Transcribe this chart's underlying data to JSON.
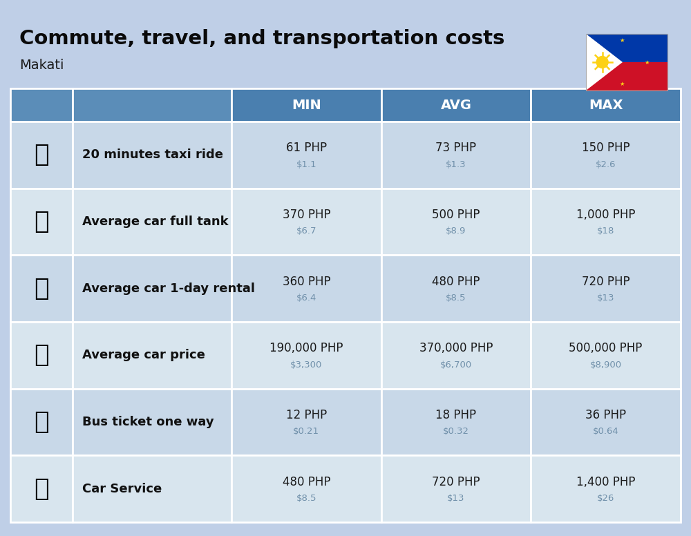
{
  "title": "Commute, travel, and transportation costs",
  "subtitle": "Makati",
  "background_color": "#BFCFE7",
  "header_bg_color_side": "#5B8DB8",
  "header_bg_color_main": "#4A7FAF",
  "row_colors": [
    "#C8D8E8",
    "#D8E5EE"
  ],
  "border_color": "#FFFFFF",
  "col_headers": [
    "MIN",
    "AVG",
    "MAX"
  ],
  "rows": [
    {
      "label": "20 minutes taxi ride",
      "icon": "🚕",
      "min_php": "61 PHP",
      "min_usd": "$1.1",
      "avg_php": "73 PHP",
      "avg_usd": "$1.3",
      "max_php": "150 PHP",
      "max_usd": "$2.6"
    },
    {
      "label": "Average car full tank",
      "icon": "⛽",
      "min_php": "370 PHP",
      "min_usd": "$6.7",
      "avg_php": "500 PHP",
      "avg_usd": "$8.9",
      "max_php": "1,000 PHP",
      "max_usd": "$18"
    },
    {
      "label": "Average car 1-day rental",
      "icon": "🚙",
      "min_php": "360 PHP",
      "min_usd": "$6.4",
      "avg_php": "480 PHP",
      "avg_usd": "$8.5",
      "max_php": "720 PHP",
      "max_usd": "$13"
    },
    {
      "label": "Average car price",
      "icon": "🚗",
      "min_php": "190,000 PHP",
      "min_usd": "$3,300",
      "avg_php": "370,000 PHP",
      "avg_usd": "$6,700",
      "max_php": "500,000 PHP",
      "max_usd": "$8,900"
    },
    {
      "label": "Bus ticket one way",
      "icon": "🚌",
      "min_php": "12 PHP",
      "min_usd": "$0.21",
      "avg_php": "18 PHP",
      "avg_usd": "$0.32",
      "max_php": "36 PHP",
      "max_usd": "$0.64"
    },
    {
      "label": "Car Service",
      "icon": "🚗",
      "min_php": "480 PHP",
      "min_usd": "$8.5",
      "avg_php": "720 PHP",
      "avg_usd": "$13",
      "max_php": "1,400 PHP",
      "max_usd": "$26"
    }
  ],
  "flag": {
    "blue": "#0038A8",
    "red": "#CE1126",
    "white": "#FFFFFF",
    "yellow": "#FCD116"
  }
}
